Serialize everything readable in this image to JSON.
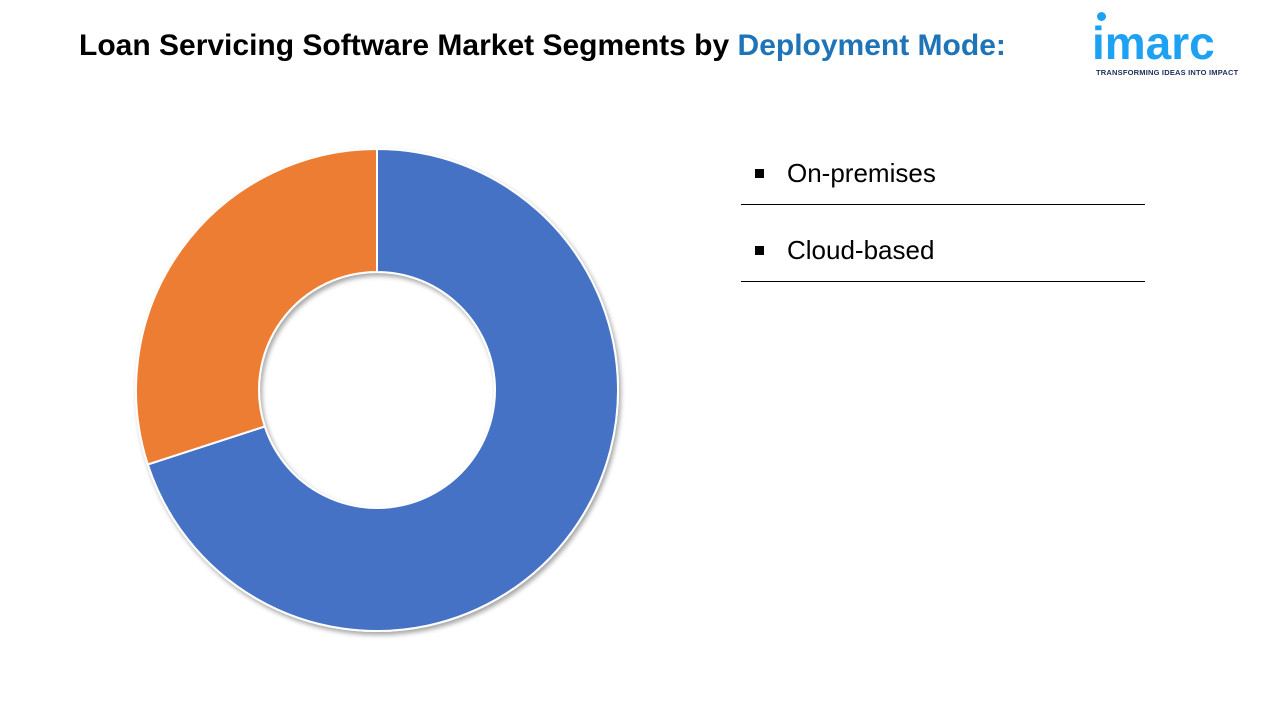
{
  "title": {
    "main": "Loan Servicing Software Market Segments by ",
    "accent": "Deployment Mode:"
  },
  "logo": {
    "word": "imarc",
    "tagline": "TRANSFORMING IDEAS INTO IMPACT"
  },
  "colors": {
    "title_accent": "#1f73b7",
    "on_premises": "#4472c4",
    "cloud_based": "#ed7d31",
    "logo": "#1da1f2"
  },
  "chart_data": {
    "type": "pie",
    "variant": "donut",
    "title": "",
    "categories": [
      "On-premises",
      "Cloud-based"
    ],
    "values": [
      70,
      30
    ],
    "colors": [
      "#4472c4",
      "#ed7d31"
    ],
    "legend": "right"
  },
  "legend": {
    "items": [
      {
        "label": "On-premises"
      },
      {
        "label": "Cloud-based"
      }
    ]
  }
}
